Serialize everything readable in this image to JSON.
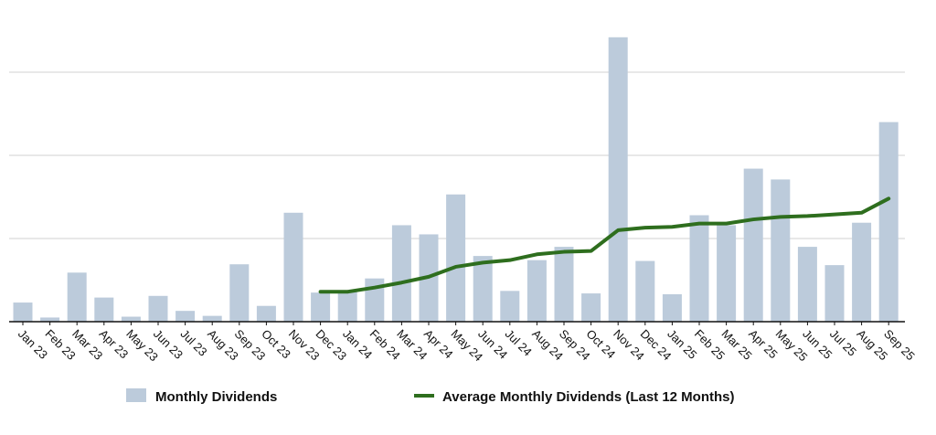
{
  "chart_data": {
    "type": "bar",
    "categories": [
      "Jan 23",
      "Feb 23",
      "Mar 23",
      "Apr 23",
      "May 23",
      "Jun 23",
      "Jul 23",
      "Aug 23",
      "Sep 23",
      "Oct 23",
      "Nov 23",
      "Dec 23",
      "Jan 24",
      "Feb 24",
      "Mar 24",
      "Apr 24",
      "May 24",
      "Jun 24",
      "Jul 24",
      "Aug 24",
      "Sep 24",
      "Oct 24",
      "Nov 24",
      "Dec 24",
      "Jan 25",
      "Feb 25",
      "Mar 25",
      "Apr 25",
      "May 25",
      "Jun 25",
      "Jul 25",
      "Aug 25",
      "Sep 25"
    ],
    "series": [
      {
        "name": "Monthly Dividends",
        "kind": "bar",
        "color": "#bccbdb",
        "values": [
          0.23,
          0.05,
          0.59,
          0.29,
          0.06,
          0.31,
          0.13,
          0.07,
          0.69,
          0.19,
          1.31,
          0.35,
          0.37,
          0.52,
          1.16,
          1.05,
          1.53,
          0.79,
          0.37,
          0.74,
          0.9,
          0.34,
          3.42,
          0.73,
          0.33,
          1.28,
          1.16,
          1.84,
          1.71,
          0.9,
          0.68,
          1.19,
          2.4
        ]
      },
      {
        "name": "Average Monthly Dividends (Last 12 Months)",
        "kind": "line",
        "color": "#2e6e1e",
        "values": [
          null,
          null,
          null,
          null,
          null,
          null,
          null,
          null,
          null,
          null,
          null,
          0.36,
          0.36,
          0.41,
          0.47,
          0.54,
          0.66,
          0.71,
          0.74,
          0.81,
          0.84,
          0.85,
          1.1,
          1.13,
          1.14,
          1.18,
          1.18,
          1.23,
          1.26,
          1.27,
          1.29,
          1.31,
          1.48
        ]
      }
    ],
    "ylim": [
      0,
      3.5
    ],
    "y_gridlines": [
      1,
      2,
      3
    ],
    "grid": true,
    "y_tick_labels_shown": false,
    "xlabel": "",
    "ylabel": "",
    "title": "",
    "legend_position": "bottom"
  }
}
